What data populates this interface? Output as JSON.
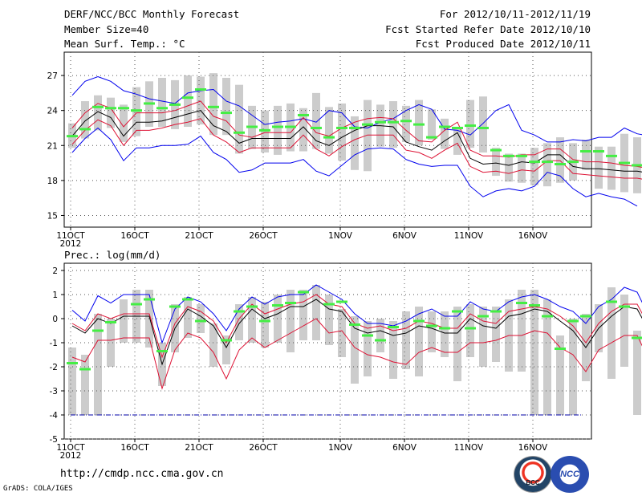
{
  "header": {
    "title": "DERF/NCC/BCC Monthly Forecast",
    "member_size": "Member Size=40",
    "variable1": "Mean Surf. Temp.: °C",
    "period": "For 2012/10/11-2012/11/19",
    "start_date": "Fcst Started Refer Date 2012/10/10",
    "produced_date": "Fcst Produced Date 2012/10/11"
  },
  "panel2_label": "Prec.: log(mm/d)",
  "footer": {
    "url": "http://cmdp.ncc.cma.gov.cn",
    "credit": "GrADS: COLA/IGES",
    "logo1_text": "BCC",
    "logo2_text": "NCC"
  },
  "colors": {
    "max": "#0000ee",
    "min": "#0000ee",
    "mean": "#000000",
    "sd": "#dd1133",
    "bar": "#cccccc",
    "obs": "#44ee44"
  },
  "chart_data": [
    {
      "type": "line",
      "title": "Mean Surf. Temp.: °C",
      "x_ticks": [
        "11OCT",
        "16OCT",
        "21OCT",
        "26OCT",
        "1NOV",
        "6NOV",
        "11NOV",
        "16NOV"
      ],
      "x_sublabel": "2012",
      "ylim": [
        14,
        29
      ],
      "y_ticks": [
        15,
        18,
        21,
        24,
        27
      ],
      "series": [
        {
          "name": "max",
          "values": [
            25.3,
            26.5,
            26.9,
            26.5,
            25.7,
            25.4,
            25.0,
            24.8,
            24.6,
            25.5,
            25.7,
            25.8,
            24.8,
            24.4,
            23.6,
            22.8,
            23.0,
            23.1,
            23.3,
            23.0,
            24.0,
            23.8,
            22.6,
            22.5,
            23.0,
            23.3,
            24.0,
            24.5,
            24.1,
            22.4,
            22.3,
            21.9,
            22.9,
            24.0,
            24.5,
            22.3,
            21.9,
            21.3,
            21.3,
            21.5,
            21.4,
            21.7,
            21.7,
            22.5,
            22.0,
            21.8,
            21.3,
            21.4,
            21.9
          ]
        },
        {
          "name": "sd_upper",
          "values": [
            22.5,
            23.8,
            24.6,
            24.2,
            22.6,
            23.8,
            23.8,
            23.8,
            24.0,
            24.4,
            24.8,
            23.5,
            23.1,
            21.9,
            21.7,
            22.1,
            22.1,
            22.1,
            23.4,
            22.1,
            21.8,
            22.5,
            23.0,
            23.3,
            23.4,
            23.3,
            22.3,
            21.4,
            21.3,
            22.3,
            23.0,
            20.6,
            20.1,
            20.1,
            20.0,
            20.2,
            20.2,
            20.7,
            20.7,
            19.8,
            19.6,
            19.6,
            19.5,
            19.3,
            19.2,
            19.0
          ]
        },
        {
          "name": "mean",
          "values": [
            21.8,
            23.1,
            23.9,
            23.4,
            21.8,
            23.0,
            23.0,
            23.1,
            23.4,
            23.7,
            24.0,
            22.7,
            22.2,
            21.2,
            21.6,
            21.6,
            21.6,
            21.6,
            22.6,
            21.4,
            21.0,
            21.7,
            22.3,
            22.7,
            22.7,
            22.6,
            21.3,
            20.9,
            20.6,
            21.4,
            22.1,
            19.9,
            19.4,
            19.5,
            19.3,
            19.6,
            19.5,
            20.2,
            20.2,
            19.2,
            19.0,
            19.0,
            18.9,
            18.8,
            18.8,
            18.6
          ]
        },
        {
          "name": "sd_lower",
          "values": [
            21.1,
            22.3,
            23.2,
            22.7,
            21.0,
            22.3,
            22.3,
            22.5,
            22.8,
            23.0,
            23.3,
            21.9,
            21.3,
            20.4,
            20.8,
            20.8,
            20.8,
            20.8,
            21.9,
            20.7,
            20.1,
            20.9,
            21.5,
            21.9,
            21.9,
            21.9,
            20.6,
            20.4,
            19.9,
            20.6,
            21.2,
            19.2,
            18.7,
            18.8,
            18.6,
            18.9,
            18.8,
            19.7,
            19.7,
            18.6,
            18.5,
            18.4,
            18.3,
            18.2,
            18.2,
            18.0
          ]
        },
        {
          "name": "min",
          "values": [
            20.4,
            21.6,
            22.5,
            21.5,
            19.7,
            20.8,
            20.8,
            21.0,
            21.0,
            21.1,
            21.8,
            20.4,
            19.8,
            18.7,
            18.9,
            19.5,
            19.5,
            19.5,
            19.8,
            18.8,
            18.4,
            19.3,
            20.2,
            20.7,
            20.8,
            20.7,
            19.8,
            19.4,
            19.2,
            19.3,
            19.3,
            17.5,
            16.6,
            17.1,
            17.3,
            17.1,
            17.5,
            18.7,
            18.4,
            17.3,
            16.6,
            16.9,
            16.6,
            16.4,
            15.8
          ]
        }
      ],
      "bars": [
        [
          20.8,
          22.9
        ],
        [
          21.6,
          24.8
        ],
        [
          22.3,
          25.3
        ],
        [
          22.5,
          25.1
        ],
        [
          21.3,
          24.5
        ],
        [
          21.8,
          26.0
        ],
        [
          22.6,
          26.5
        ],
        [
          22.6,
          26.8
        ],
        [
          22.4,
          26.6
        ],
        [
          22.6,
          27.0
        ],
        [
          22.8,
          26.9
        ],
        [
          21.9,
          27.2
        ],
        [
          21.9,
          26.8
        ],
        [
          20.3,
          26.2
        ],
        [
          20.7,
          24.4
        ],
        [
          20.4,
          24.0
        ],
        [
          20.2,
          24.4
        ],
        [
          20.5,
          24.6
        ],
        [
          20.5,
          24.2
        ],
        [
          20.7,
          25.5
        ],
        [
          20.3,
          24.3
        ],
        [
          19.7,
          24.6
        ],
        [
          18.9,
          23.5
        ],
        [
          18.8,
          24.9
        ],
        [
          20.9,
          24.5
        ],
        [
          20.8,
          24.8
        ],
        [
          21.3,
          24.4
        ],
        [
          21.0,
          24.9
        ],
        [
          21.5,
          24.1
        ],
        [
          20.7,
          23.3
        ],
        [
          20.2,
          22.4
        ],
        [
          20.8,
          24.9
        ],
        [
          20.4,
          25.2
        ],
        [
          18.4,
          20.8
        ],
        [
          17.9,
          20.3
        ],
        [
          17.8,
          20.3
        ],
        [
          17.6,
          20.8
        ],
        [
          17.5,
          21.2
        ],
        [
          17.8,
          21.7
        ],
        [
          18.0,
          21.2
        ],
        [
          18.9,
          21.5
        ],
        [
          17.3,
          20.9
        ],
        [
          17.2,
          20.9
        ],
        [
          17.0,
          22.0
        ],
        [
          16.9,
          21.7
        ],
        [
          17.0,
          22.0
        ],
        [
          17.3,
          21.7
        ],
        [
          16.5,
          22.4
        ]
      ],
      "obs": [
        21.8,
        22.4,
        24.3,
        24.2,
        24.2,
        24.0,
        24.6,
        24.2,
        24.5,
        25.1,
        25.8,
        24.3,
        23.8,
        22.1,
        22.6,
        22.3,
        22.6,
        22.6,
        23.6,
        22.5,
        21.7,
        22.5,
        22.5,
        22.8,
        23.0,
        23.0,
        23.1,
        22.8,
        21.7,
        22.6,
        22.5,
        22.7,
        22.5,
        20.6,
        20.1,
        20.1,
        19.6,
        19.6,
        19.4,
        19.6,
        20.5,
        20.5,
        20.1,
        19.5,
        19.3,
        19.2,
        19.4,
        19.1
      ]
    },
    {
      "type": "line",
      "title": "Prec.: log(mm/d)",
      "x_ticks": [
        "11OCT",
        "16OCT",
        "21OCT",
        "26OCT",
        "1NOV",
        "6NOV",
        "11NOV",
        "16NOV"
      ],
      "x_sublabel": "2012",
      "ylim": [
        -5,
        2.3
      ],
      "y_ticks": [
        2,
        1,
        0,
        -1,
        -2,
        -3,
        -4,
        -5
      ],
      "baseline": -4,
      "series": [
        {
          "name": "max",
          "values": [
            0.35,
            -0.1,
            0.95,
            0.65,
            1.0,
            1.0,
            1.0,
            -1.0,
            0.4,
            0.9,
            0.7,
            0.2,
            -0.5,
            0.4,
            0.9,
            0.6,
            0.9,
            1.0,
            1.0,
            1.4,
            1.1,
            0.8,
            0.2,
            -0.2,
            -0.2,
            -0.3,
            -0.1,
            0.2,
            0.4,
            0.1,
            0.1,
            0.7,
            0.4,
            0.3,
            0.7,
            0.9,
            1.0,
            0.8,
            0.5,
            0.3,
            -0.2,
            0.5,
            0.8,
            1.3,
            1.1,
            0.0,
            -0.2
          ]
        },
        {
          "name": "mean",
          "values": [
            -0.3,
            -0.6,
            0.0,
            -0.2,
            0.1,
            0.1,
            0.1,
            -1.9,
            -0.4,
            0.4,
            0.1,
            -0.3,
            -1.2,
            -0.2,
            0.4,
            0.0,
            0.2,
            0.5,
            0.5,
            0.8,
            0.4,
            0.3,
            -0.4,
            -0.6,
            -0.5,
            -0.7,
            -0.6,
            -0.3,
            -0.4,
            -0.6,
            -0.6,
            0.0,
            -0.3,
            -0.4,
            0.1,
            0.2,
            0.4,
            0.3,
            -0.1,
            -0.5,
            -1.2,
            -0.4,
            0.1,
            0.5,
            0.4,
            -0.6,
            -0.7
          ]
        },
        {
          "name": "sd_upper",
          "values": [
            -0.2,
            -0.5,
            0.2,
            0.0,
            0.2,
            0.2,
            0.2,
            -1.6,
            -0.2,
            0.5,
            0.3,
            -0.1,
            -1.0,
            0.0,
            0.6,
            0.2,
            0.4,
            0.6,
            0.7,
            1.0,
            0.6,
            0.5,
            -0.2,
            -0.4,
            -0.3,
            -0.5,
            -0.4,
            -0.1,
            -0.2,
            -0.4,
            -0.4,
            0.2,
            -0.1,
            -0.2,
            0.3,
            0.4,
            0.5,
            0.4,
            0.1,
            -0.3,
            -1.0,
            -0.2,
            0.3,
            0.6,
            0.6,
            -0.4,
            -0.5
          ]
        },
        {
          "name": "sd_lower",
          "values": [
            -1.6,
            -1.8,
            -0.9,
            -0.9,
            -0.8,
            -0.8,
            -0.8,
            -2.9,
            -1.3,
            -0.6,
            -0.8,
            -1.4,
            -2.5,
            -1.3,
            -0.8,
            -1.2,
            -0.9,
            -0.6,
            -0.3,
            0.0,
            -0.6,
            -0.5,
            -1.2,
            -1.5,
            -1.6,
            -1.8,
            -1.9,
            -1.4,
            -1.2,
            -1.4,
            -1.4,
            -1.0,
            -1.0,
            -0.9,
            -0.7,
            -0.7,
            -0.5,
            -0.6,
            -1.2,
            -1.5,
            -2.2,
            -1.3,
            -1.0,
            -0.7,
            -0.7,
            -1.8,
            -1.9
          ]
        }
      ],
      "bars": [
        [
          -4.0,
          -1.2
        ],
        [
          -4.0,
          -1.5
        ],
        [
          -4.0,
          0.2
        ],
        [
          -2.0,
          0.0
        ],
        [
          -1.0,
          0.8
        ],
        [
          -1.0,
          1.2
        ],
        [
          -1.2,
          1.2
        ],
        [
          -2.8,
          -1.0
        ],
        [
          -1.4,
          0.6
        ],
        [
          -0.8,
          0.9
        ],
        [
          -0.6,
          0.6
        ],
        [
          -2.0,
          -0.2
        ],
        [
          -1.9,
          -0.7
        ],
        [
          -0.9,
          0.6
        ],
        [
          -1.0,
          0.9
        ],
        [
          -1.2,
          0.7
        ],
        [
          -1.0,
          1.0
        ],
        [
          -1.4,
          1.2
        ],
        [
          -0.9,
          1.2
        ],
        [
          -0.9,
          1.4
        ],
        [
          -1.1,
          1.0
        ],
        [
          -1.6,
          0.4
        ],
        [
          -2.7,
          0.1
        ],
        [
          -2.4,
          -0.1
        ],
        [
          -1.4,
          0.0
        ],
        [
          -2.5,
          -0.1
        ],
        [
          -2.1,
          0.3
        ],
        [
          -2.4,
          0.5
        ],
        [
          -1.4,
          0.3
        ],
        [
          -1.6,
          0.3
        ],
        [
          -2.6,
          0.5
        ],
        [
          -1.6,
          0.6
        ],
        [
          -2.0,
          0.5
        ],
        [
          -1.8,
          0.5
        ],
        [
          -2.2,
          0.8
        ],
        [
          -2.2,
          1.2
        ],
        [
          -4.0,
          1.2
        ],
        [
          -4.0,
          0.8
        ],
        [
          -4.0,
          -0.7
        ],
        [
          -4.0,
          0.0
        ],
        [
          -2.6,
          0.2
        ],
        [
          -1.4,
          0.6
        ],
        [
          -2.5,
          1.3
        ],
        [
          -2.0,
          1.0
        ],
        [
          -4.0,
          -0.5
        ],
        [
          -4.0,
          -0.7
        ]
      ],
      "obs": [
        -1.85,
        -2.1,
        -0.5,
        -0.15,
        0.6,
        0.8,
        -1.35,
        0.5,
        0.8,
        -0.1,
        -0.9,
        0.3,
        0.5,
        -0.1,
        0.55,
        0.65,
        1.1,
        0.6,
        0.7,
        -0.25,
        -0.7,
        -0.9,
        -0.35,
        -0.1,
        -0.3,
        -0.4,
        0.3,
        -0.4,
        0.1,
        0.3,
        0.65,
        0.55,
        0.1,
        -1.25,
        -0.1,
        0.1,
        0.7,
        0.5,
        -0.8,
        -0.95
      ]
    }
  ]
}
